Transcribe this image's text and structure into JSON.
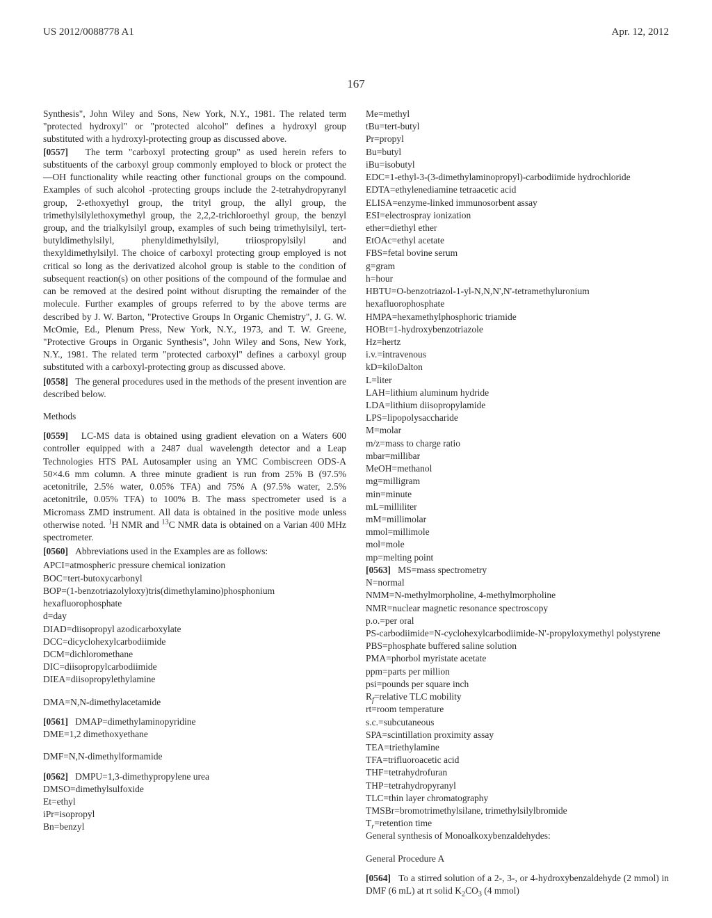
{
  "header": {
    "pub_number": "US 2012/0088778 A1",
    "pub_date": "Apr. 12, 2012"
  },
  "page_number": "167",
  "left": {
    "p0556_cont": "Synthesis\", John Wiley and Sons, New York, N.Y., 1981. The related term \"protected hydroxyl\" or \"protected alcohol\" defines a hydroxyl group substituted with a hydroxyl-protecting group as discussed above.",
    "p0557_ref": "[0557]",
    "p0557": "The term \"carboxyl protecting group\" as used herein refers to substituents of the carboxyl group commonly employed to block or protect the —OH functionality while reacting other functional groups on the compound. Examples of such alcohol -protecting groups include the 2-tetrahydropyranyl group, 2-ethoxyethyl group, the trityl group, the allyl group, the trimethylsilylethoxymethyl group, the 2,2,2-trichloroethyl group, the benzyl group, and the trialkylsilyl group, examples of such being trimethylsilyl, tert-butyldimethylsilyl, phenyldimethylsilyl, triiospropylsilyl and thexyldimethylsilyl. The choice of carboxyl protecting group employed is not critical so long as the derivatized alcohol group is stable to the condition of subsequent reaction(s) on other positions of the compound of the formulae and can be removed at the desired point without disrupting the remainder of the molecule. Further examples of groups referred to by the above terms are described by J. W. Barton, \"Protective Groups In Organic Chemistry\", J. G. W. McOmie, Ed., Plenum Press, New York, N.Y., 1973, and T. W. Greene, \"Protective Groups in Organic Synthesis\", John Wiley and Sons, New York, N.Y., 1981. The related term \"protected carboxyl\" defines a carboxyl group substituted with a carboxyl-protecting group as discussed above.",
    "p0558_ref": "[0558]",
    "p0558": "The general procedures used in the methods of the present invention are described below.",
    "methods_head": "Methods",
    "p0559_ref": "[0559]",
    "p0559_a": "LC-MS data is obtained using gradient elevation on a Waters 600 controller equipped with a 2487 dual wavelength detector and a Leap Technologies HTS PAL Autosampler using an YMC Combiscreen ODS-A 50×4.6 mm column. A three minute gradient is run from 25% B (97.5% acetonitrile, 2.5% water, 0.05% TFA) and 75% A (97.5% water, 2.5% acetonitrile, 0.05% TFA) to 100% B. The mass spectrometer used is a Micromass ZMD instrument. All data is obtained in the positive mode unless otherwise noted. ",
    "p0559_b": "H NMR and ",
    "p0559_c": "C NMR data is obtained on a Varian 400 MHz spectrometer.",
    "p0560_ref": "[0560]",
    "p0560": "Abbreviations used in the Examples are as follows:",
    "abbr_left": [
      "APCI=atmospheric pressure chemical ionization",
      "BOC=tert-butoxycarbonyl",
      "BOP=(1-benzotriazolyloxy)tris(dimethylamino)phosphonium hexafluorophosphate",
      "d=day",
      "DIAD=diisopropyl azodicarboxylate",
      "DCC=dicyclohexylcarbodiimide",
      "DCM=dichloromethane",
      "DIC=diisopropylcarbodiimide",
      "DIEA=diisopropylethylamine"
    ],
    "dma_head": "DMA=N,N-dimethylacetamide",
    "p0561_ref": "[0561]",
    "p0561": "DMAP=dimethylaminopyridine",
    "dme": "DME=1,2 dimethoxyethane",
    "dmf_head": "DMF=N,N-dimethylformamide",
    "p0562_ref": "[0562]",
    "p0562": "DMPU=1,3-dimethypropylene urea",
    "abbr_left2": [
      "DMSO=dimethylsulfoxide",
      "Et=ethyl",
      "iPr=isopropyl",
      "Bn=benzyl"
    ]
  },
  "right": {
    "abbr1": [
      "Me=methyl",
      "tBu=tert-butyl",
      "Pr=propyl",
      "Bu=butyl",
      "iBu=isobutyl",
      "EDC=1-ethyl-3-(3-dimethylaminopropyl)-carbodiimide hydrochloride",
      "EDTA=ethylenediamine tetraacetic acid",
      "ELISA=enzyme-linked immunosorbent assay",
      "ESI=electrospray ionization",
      "ether=diethyl ether",
      "EtOAc=ethyl acetate",
      "FBS=fetal bovine serum",
      "g=gram",
      "h=hour",
      "HBTU=O-benzotriazol-1-yl-N,N,N',N'-tetramethyluronium hexafluorophosphate",
      "HMPA=hexamethylphosphoric triamide",
      "HOBt=1-hydroxybenzotriazole",
      "Hz=hertz",
      "i.v.=intravenous",
      "kD=kiloDalton",
      "L=liter",
      "LAH=lithium aluminum hydride",
      "LDA=lithium diisopropylamide",
      "LPS=lipopolysaccharide",
      "M=molar",
      "m/z=mass to charge ratio",
      "mbar=millibar",
      "MeOH=methanol",
      "mg=milligram",
      "min=minute",
      "mL=milliliter",
      "mM=millimolar",
      "mmol=millimole",
      "mol=mole",
      "mp=melting point"
    ],
    "p0563_ref": "[0563]",
    "p0563": "MS=mass spectrometry",
    "abbr2": [
      "N=normal",
      "NMM=N-methylmorpholine, 4-methylmorpholine",
      "NMR=nuclear magnetic resonance spectroscopy",
      "p.o.=per oral",
      "PS-carbodiimide=N-cyclohexylcarbodiimide-N'-propyloxymethyl polystyrene",
      "PBS=phosphate buffered saline solution",
      "PMA=phorbol myristate acetate",
      "ppm=parts per million",
      "psi=pounds per square inch"
    ],
    "rf_a": "R",
    "rf_b": "=relative TLC mobility",
    "abbr3": [
      "rt=room temperature",
      "s.c.=subcutaneous",
      "SPA=scintillation proximity assay",
      "TEA=triethylamine",
      "TFA=trifluoroacetic acid",
      "THF=tetrahydrofuran",
      "THP=tetrahydropyranyl",
      "TLC=thin layer chromatography",
      "TMSBr=bromotrimethylsilane, trimethylsilylbromide"
    ],
    "tr_a": "T",
    "tr_b": "=retention time",
    "gensynth": "General synthesis of Monoalkoxybenzaldehydes:",
    "genproc_head": "General Procedure A",
    "p0564_ref": "[0564]",
    "p0564_a": "To a stirred solution of a 2-, 3-, or 4-hydroxybenzaldehyde (2 mmol) in DMF (6 mL) at rt solid K",
    "p0564_b": "CO",
    "p0564_c": " (4 mmol)"
  }
}
